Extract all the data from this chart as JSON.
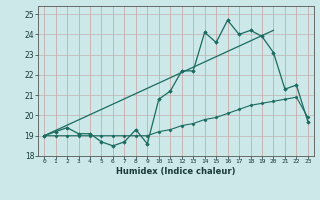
{
  "xlabel": "Humidex (Indice chaleur)",
  "bg_color": "#cce8e8",
  "line_color": "#1a6b60",
  "grid_color_v": "#c8a0a0",
  "grid_color_h": "#c0b0b0",
  "xlim": [
    -0.5,
    23.5
  ],
  "ylim": [
    18.0,
    25.4
  ],
  "yticks": [
    18,
    19,
    20,
    21,
    22,
    23,
    24,
    25
  ],
  "xticks": [
    0,
    1,
    2,
    3,
    4,
    5,
    6,
    7,
    8,
    9,
    10,
    11,
    12,
    13,
    14,
    15,
    16,
    17,
    18,
    19,
    20,
    21,
    22,
    23
  ],
  "line1_x": [
    0,
    1,
    2,
    3,
    4,
    5,
    6,
    7,
    8,
    9,
    10,
    11,
    12,
    13,
    14,
    15,
    16,
    17,
    18,
    19,
    20,
    21,
    22,
    23
  ],
  "line1_y": [
    19.0,
    19.2,
    19.4,
    19.1,
    19.1,
    18.7,
    18.5,
    18.7,
    19.3,
    18.6,
    20.8,
    21.2,
    22.2,
    22.2,
    24.1,
    23.6,
    24.7,
    24.0,
    24.2,
    23.9,
    23.1,
    21.3,
    21.5,
    19.7
  ],
  "line2_x": [
    0,
    1,
    2,
    3,
    4,
    5,
    6,
    7,
    8,
    9,
    10,
    11,
    12,
    13,
    14,
    15,
    16,
    17,
    18,
    19,
    20,
    21,
    22,
    23
  ],
  "line2_y": [
    19.0,
    19.0,
    19.0,
    19.0,
    19.0,
    19.0,
    19.0,
    19.0,
    19.0,
    19.0,
    19.2,
    19.3,
    19.5,
    19.6,
    19.8,
    19.9,
    20.1,
    20.3,
    20.5,
    20.6,
    20.7,
    20.8,
    20.9,
    19.9
  ],
  "trend_x": [
    0,
    20
  ],
  "trend_y": [
    19.0,
    24.2
  ]
}
